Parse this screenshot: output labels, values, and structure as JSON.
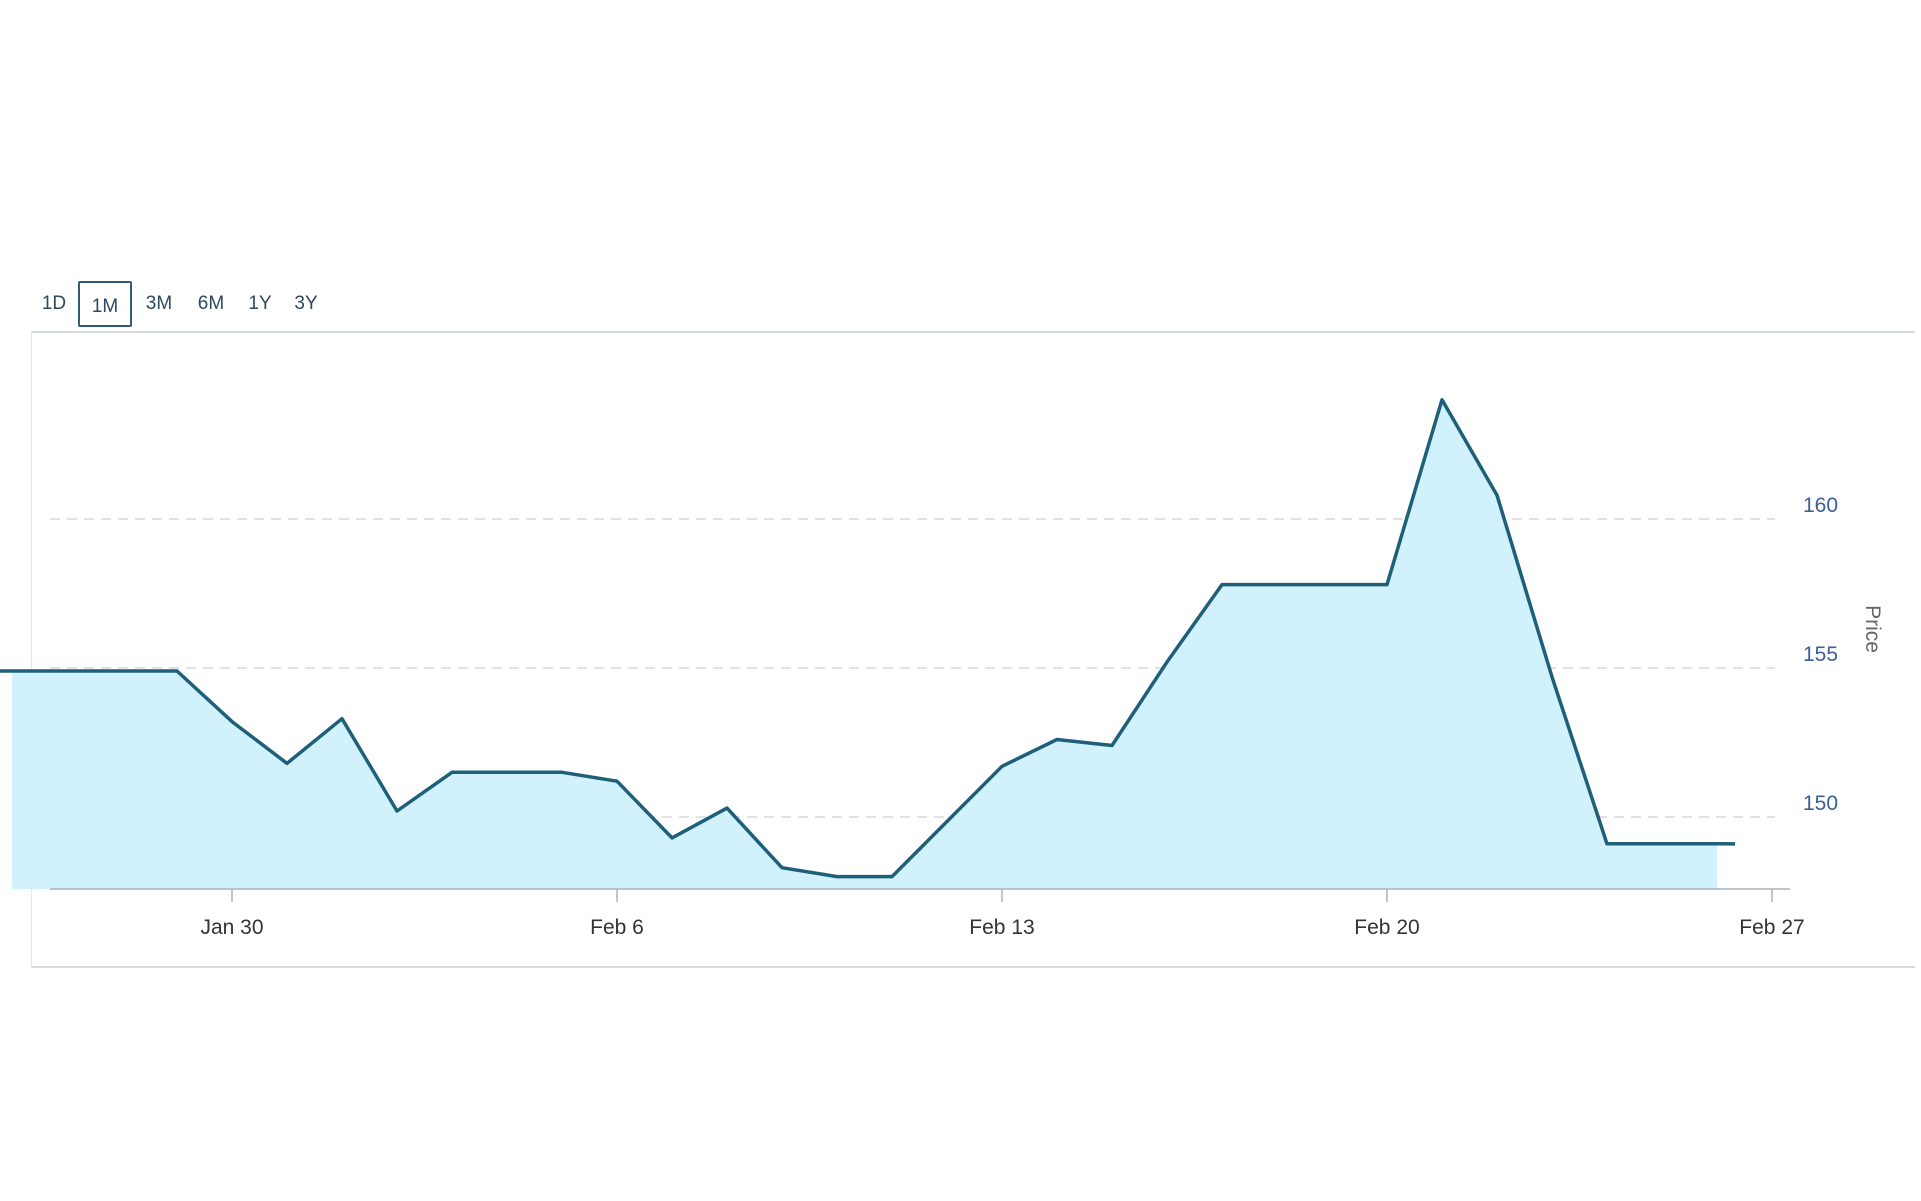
{
  "range_selector": {
    "buttons": [
      {
        "label": "1D",
        "active": false
      },
      {
        "label": "1M",
        "active": true
      },
      {
        "label": "3M",
        "active": false
      },
      {
        "label": "6M",
        "active": false
      },
      {
        "label": "1Y",
        "active": false
      },
      {
        "label": "3Y",
        "active": false
      }
    ]
  },
  "colors": {
    "line": "#1e5f7a",
    "fill": "#d1f2fc",
    "grid": "#d9d9d9",
    "axis": "#aab3ba",
    "y_tick_text": "#3c5f94",
    "x_tick_text": "#333333",
    "ylabel_text": "#666666"
  },
  "chart_data": {
    "type": "area",
    "title": "",
    "xlabel": "",
    "ylabel": "Price",
    "y_axis_side": "right",
    "ylim": [
      147.6,
      164.5
    ],
    "xlim": [
      "2017-01-26",
      "2017-02-27"
    ],
    "y_ticks": [
      150,
      155,
      160
    ],
    "y_tick_labels": [
      "150",
      "155",
      "160"
    ],
    "x_ticks": [
      "2017-01-30",
      "2017-02-06",
      "2017-02-13",
      "2017-02-20",
      "2017-02-27"
    ],
    "x_tick_labels": [
      "Jan 30",
      "Feb 6",
      "Feb 13",
      "Feb 20",
      "Feb 27"
    ],
    "grid": "horizontal dashed",
    "legend": "none",
    "series": [
      {
        "x": [
          "2017-01-26",
          "2017-01-27",
          "2017-01-29",
          "2017-01-30",
          "2017-01-31",
          "2017-02-01",
          "2017-02-02",
          "2017-02-03",
          "2017-02-05",
          "2017-02-06",
          "2017-02-07",
          "2017-02-08",
          "2017-02-09",
          "2017-02-10",
          "2017-02-11",
          "2017-02-13",
          "2017-02-14",
          "2017-02-15",
          "2017-02-16",
          "2017-02-17",
          "2017-02-18",
          "2017-02-20",
          "2017-02-21",
          "2017-02-22",
          "2017-02-23",
          "2017-02-24",
          "2017-02-25",
          "2017-02-26"
        ],
        "values": [
          154.9,
          154.9,
          154.9,
          153.2,
          151.8,
          153.3,
          150.2,
          151.5,
          151.5,
          151.2,
          149.3,
          150.3,
          148.3,
          148.0,
          148.0,
          151.7,
          152.6,
          152.4,
          155.2,
          157.8,
          157.8,
          157.8,
          164.0,
          160.8,
          154.7,
          149.1,
          149.1,
          149.1
        ]
      }
    ]
  }
}
